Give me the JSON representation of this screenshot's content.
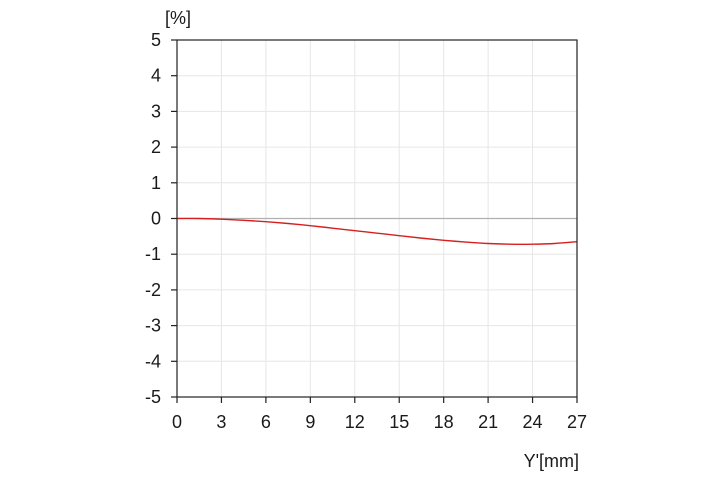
{
  "chart_data": {
    "type": "line",
    "title": "",
    "ylabel": "[%]",
    "xlabel": "Y'[mm]",
    "xlim": [
      0,
      27
    ],
    "ylim": [
      -5,
      5
    ],
    "x_ticks": [
      0,
      3,
      6,
      9,
      12,
      15,
      18,
      21,
      24,
      27
    ],
    "y_ticks": [
      5,
      4,
      3,
      2,
      1,
      0,
      -1,
      -2,
      -3,
      -4,
      -5
    ],
    "grid": true,
    "legend": "none",
    "series": [
      {
        "color": "#d62020",
        "x": [
          0,
          1.5,
          3,
          4.5,
          6,
          7.5,
          9,
          10.5,
          12,
          13.5,
          15,
          16.5,
          18,
          19.5,
          21,
          22.5,
          24,
          25.5,
          27
        ],
        "y": [
          0,
          0,
          -0.02,
          -0.05,
          -0.09,
          -0.14,
          -0.2,
          -0.27,
          -0.34,
          -0.41,
          -0.48,
          -0.55,
          -0.61,
          -0.66,
          -0.7,
          -0.72,
          -0.72,
          -0.7,
          -0.65
        ]
      }
    ],
    "colors": {
      "grid": "#e6e6e6",
      "axis": "#222222",
      "zero_line": "#b0b0b0"
    }
  }
}
